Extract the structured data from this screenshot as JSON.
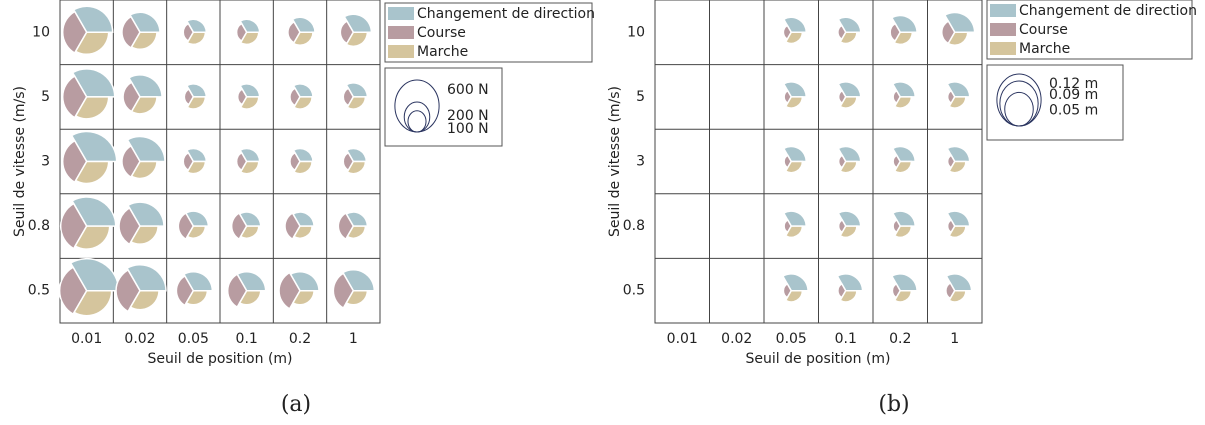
{
  "chart_data": [
    {
      "type": "polar_area_grid",
      "caption": "(a)",
      "xlabel": "Seuil de position (m)",
      "ylabel": "Seuil de vitesse (m/s)",
      "categories": [
        "0.01",
        "0.02",
        "0.05",
        "0.1",
        "0.2",
        "1"
      ],
      "rows": [
        "10",
        "5",
        "3",
        "0.8",
        "0.5"
      ],
      "series": [
        {
          "name": "Changement de direction",
          "color": "#a9c4cc",
          "values": [
            [
              600,
              355,
              150,
              150,
              200,
              290
            ],
            [
              700,
              430,
              150,
              150,
              150,
              175
            ],
            [
              800,
              555,
              150,
              150,
              150,
              150
            ],
            [
              750,
              510,
              200,
              175,
              175,
              175
            ],
            [
              910,
              600,
              320,
              320,
              320,
              390
            ]
          ]
        },
        {
          "name": "Course",
          "color": "#b89ca1",
          "values": [
            [
              510,
              290,
              90,
              90,
              130,
              150
            ],
            [
              510,
              255,
              72,
              72,
              90,
              90
            ],
            [
              510,
              290,
              90,
              90,
              90,
              90
            ],
            [
              600,
              390,
              200,
              200,
              200,
              200
            ],
            [
              650,
              510,
              255,
              320,
              390,
              355
            ]
          ]
        },
        {
          "name": "Marche",
          "color": "#d5c59d",
          "values": [
            [
              430,
              255,
              130,
              130,
              150,
              175
            ],
            [
              430,
              255,
              130,
              130,
              130,
              130
            ],
            [
              430,
              255,
              130,
              130,
              130,
              130
            ],
            [
              470,
              290,
              130,
              130,
              130,
              130
            ],
            [
              555,
              320,
              175,
              175,
              175,
              175
            ]
          ]
        }
      ],
      "size_legend": [
        {
          "value": 600,
          "label": "600 N"
        },
        {
          "value": 200,
          "label": "200 N"
        },
        {
          "value": 100,
          "label": "100 N"
        }
      ]
    },
    {
      "type": "polar_area_grid",
      "caption": "(b)",
      "xlabel": "Seuil de position (m)",
      "ylabel": "Seuil de vitesse (m/s)",
      "categories": [
        "0.01",
        "0.02",
        "0.05",
        "0.1",
        "0.2",
        "1"
      ],
      "rows": [
        "10",
        "5",
        "3",
        "0.8",
        "0.5"
      ],
      "series": [
        {
          "name": "Changement de direction",
          "color": "#a9c4cc",
          "values": [
            [
              null,
              null,
              0.04,
              0.04,
              0.05,
              0.07
            ],
            [
              null,
              null,
              0.04,
              0.04,
              0.04,
              0.04
            ],
            [
              null,
              null,
              0.04,
              0.04,
              0.04,
              0.04
            ],
            [
              null,
              null,
              0.04,
              0.04,
              0.04,
              0.04
            ],
            [
              null,
              null,
              0.05,
              0.05,
              0.05,
              0.05
            ]
          ]
        },
        {
          "name": "Course",
          "color": "#b89ca1",
          "values": [
            [
              null,
              null,
              0.011,
              0.011,
              0.018,
              0.03
            ],
            [
              null,
              null,
              0.009,
              0.009,
              0.009,
              0.009
            ],
            [
              null,
              null,
              0.009,
              0.009,
              0.009,
              0.009
            ],
            [
              null,
              null,
              0.009,
              0.009,
              0.009,
              0.009
            ],
            [
              null,
              null,
              0.011,
              0.011,
              0.011,
              0.014
            ]
          ]
        },
        {
          "name": "Marche",
          "color": "#d5c59d",
          "values": [
            [
              null,
              null,
              0.022,
              0.022,
              0.026,
              0.03
            ],
            [
              null,
              null,
              0.022,
              0.022,
              0.022,
              0.022
            ],
            [
              null,
              null,
              0.022,
              0.022,
              0.022,
              0.022
            ],
            [
              null,
              null,
              0.022,
              0.022,
              0.022,
              0.022
            ],
            [
              null,
              null,
              0.022,
              0.022,
              0.022,
              0.022
            ]
          ]
        }
      ],
      "size_legend": [
        {
          "value": 0.12,
          "label": "0.12 m"
        },
        {
          "value": 0.09,
          "label": "0.09 m"
        },
        {
          "value": 0.05,
          "label": "0.05 m"
        }
      ]
    }
  ]
}
